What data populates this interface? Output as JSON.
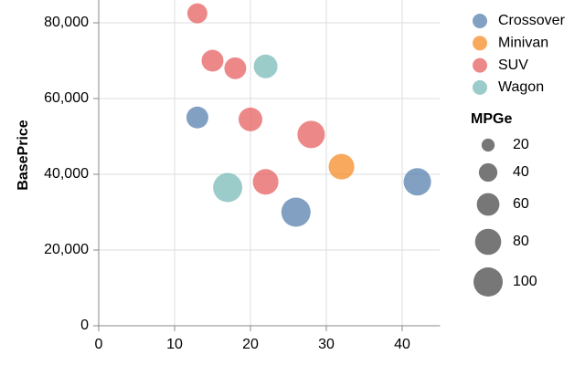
{
  "chart_data": {
    "type": "scatter",
    "y_label": "BasePrice",
    "size_label": "MPGe",
    "xlim": [
      0,
      45
    ],
    "xticks": [
      0,
      10,
      20,
      30,
      40
    ],
    "ylim": [
      0,
      90000
    ],
    "yticks": [
      {
        "value": 0,
        "label": "0"
      },
      {
        "value": 20000,
        "label": "20,000"
      },
      {
        "value": 40000,
        "label": "40,000"
      },
      {
        "value": 60000,
        "label": "60,000"
      },
      {
        "value": 80000,
        "label": "80,000"
      }
    ],
    "grid": true,
    "legend": "right",
    "size_ticks": [
      20,
      40,
      60,
      80,
      100
    ],
    "series": [
      {
        "name": "Crossover",
        "color": "#4c78a8",
        "x": [
          13,
          26,
          42
        ],
        "values": [
          55000,
          30000,
          38000
        ],
        "sizes": [
          56,
          100,
          88
        ]
      },
      {
        "name": "Minivan",
        "color": "#f58518",
        "x": [
          32
        ],
        "values": [
          42000
        ],
        "sizes": [
          77
        ]
      },
      {
        "name": "SUV",
        "color": "#e45756",
        "x": [
          13,
          15,
          18,
          20,
          28,
          22
        ],
        "values": [
          82500,
          70000,
          68000,
          54500,
          50500,
          38000
        ],
        "sizes": [
          47,
          56,
          56,
          66,
          88,
          77
        ]
      },
      {
        "name": "Wagon",
        "color": "#72b7b2",
        "x": [
          22,
          17
        ],
        "values": [
          68500,
          36500
        ],
        "sizes": [
          66,
          100
        ]
      }
    ]
  }
}
